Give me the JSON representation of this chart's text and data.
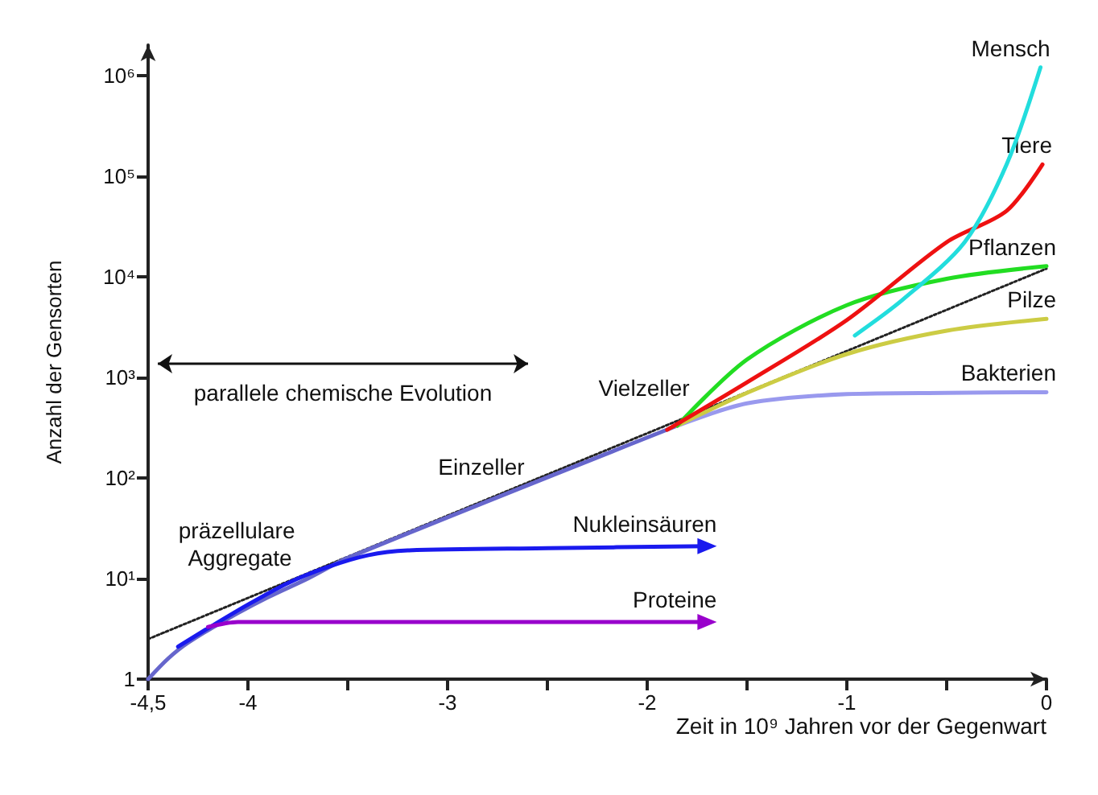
{
  "chart_data": {
    "type": "line",
    "xlabel": "Zeit in 10⁹ Jahren vor der Gegenwart",
    "ylabel": "Anzahl der Gensorten",
    "log": "y",
    "grid": false,
    "legend": false,
    "marker": "none",
    "xlim": [
      -4.5,
      0
    ],
    "xticks": [
      {
        "value": -4.5,
        "label": "-4,5"
      },
      -4,
      {
        "value": -3.5,
        "label": null
      },
      -3,
      {
        "value": -2.5,
        "label": null
      },
      -2,
      {
        "value": -1.5,
        "label": null
      },
      -1,
      {
        "value": -0.5,
        "label": null
      },
      0
    ],
    "ylim": [
      1,
      2000000
    ],
    "yticks": [
      1,
      {
        "value": 10,
        "label": "10¹"
      },
      {
        "value": 100,
        "label": "10²"
      },
      {
        "value": 1000,
        "label": "10³"
      },
      {
        "value": 10000,
        "label": "10⁴"
      },
      {
        "value": 100000,
        "label": "10⁵"
      },
      {
        "value": 1000000,
        "label": "10⁶"
      }
    ],
    "series": [
      {
        "color": "#222222",
        "line_style": "dotted",
        "x": [
          -4.5,
          0
        ],
        "values": [
          2.5,
          12000
        ]
      },
      {
        "color": "#6666cc",
        "x": [
          -4.5,
          -4.4,
          -4.3,
          -4.1,
          -3.9,
          -3.7,
          -3.5,
          -1.85
        ],
        "values": [
          1,
          1.6,
          2.3,
          4,
          6.5,
          10,
          16,
          330
        ]
      },
      {
        "name": "Nukleinsäuren",
        "color": "#1a1aee",
        "x": [
          -4.35,
          -4.2,
          -4.0,
          -3.8,
          -3.6,
          -3.4,
          -3.2,
          -2.5,
          -1.7
        ],
        "values": [
          2.1,
          3.2,
          5.5,
          9,
          13,
          17,
          19,
          20,
          21
        ]
      },
      {
        "name": "Proteine",
        "color": "#9900cc",
        "x": [
          -4.2,
          -4.05,
          -1.7
        ],
        "values": [
          3.3,
          3.7,
          3.7
        ]
      },
      {
        "name": "Bakterien",
        "color": "#9999ee",
        "x": [
          -1.85,
          -1.5,
          -1,
          -0.5,
          0
        ],
        "values": [
          330,
          550,
          680,
          700,
          710
        ]
      },
      {
        "name": "Pilze",
        "color": "#cccc44",
        "x": [
          -1.85,
          -1.5,
          -1,
          -0.5,
          0
        ],
        "values": [
          330,
          700,
          1700,
          2900,
          3800
        ]
      },
      {
        "name": "Pflanzen",
        "color": "#22dd22",
        "x": [
          -1.85,
          -1.5,
          -1,
          -0.5,
          0
        ],
        "values": [
          330,
          1500,
          5200,
          9500,
          12700
        ]
      },
      {
        "name": "Tiere",
        "color": "#ee1111",
        "x": [
          -1.9,
          -1.5,
          -1,
          -0.5,
          -0.2,
          -0.02
        ],
        "values": [
          300,
          890,
          3700,
          22000,
          45000,
          130000
        ]
      },
      {
        "name": "Mensch",
        "color": "#22dddd",
        "x": [
          -0.96,
          -0.72,
          -0.41,
          -0.2,
          -0.03
        ],
        "values": [
          2600,
          5900,
          22000,
          130000,
          1200000
        ]
      }
    ],
    "annotations": [
      "parallele chemische Evolution",
      "Einzeller",
      "Vielzeller",
      "präzellulare Aggregate"
    ]
  }
}
